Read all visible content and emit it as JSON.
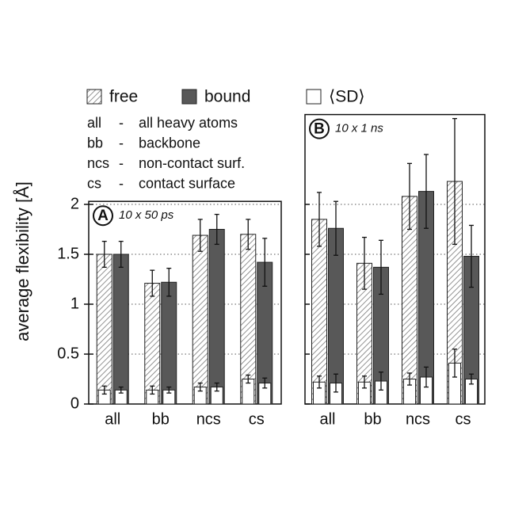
{
  "chart_data": [
    {
      "type": "bar",
      "panel": "A",
      "panel_note": "10 x 50 ps",
      "y_label": "average flexibility  [Å]",
      "categories": [
        "all",
        "bb",
        "ncs",
        "cs"
      ],
      "ylim": [
        0,
        2.03
      ],
      "yticks": [
        0,
        0.5,
        1,
        1.5,
        2
      ],
      "grid": true,
      "series": [
        {
          "name": "free",
          "color": "#ffffff",
          "pattern": "hatch",
          "values": [
            1.5,
            1.21,
            1.69,
            1.7
          ],
          "errors": [
            0.13,
            0.13,
            0.16,
            0.15
          ],
          "sd": {
            "values": [
              0.14,
              0.14,
              0.17,
              0.25
            ],
            "errors": [
              0.04,
              0.04,
              0.04,
              0.04
            ]
          }
        },
        {
          "name": "bound",
          "color": "#585858",
          "values": [
            1.5,
            1.22,
            1.75,
            1.42
          ],
          "errors": [
            0.13,
            0.14,
            0.15,
            0.24
          ],
          "sd": {
            "values": [
              0.14,
              0.14,
              0.17,
              0.21
            ],
            "errors": [
              0.03,
              0.03,
              0.04,
              0.05
            ]
          }
        }
      ],
      "sd_name": "⟨SD⟩",
      "sd_color": "#ffffff"
    },
    {
      "type": "bar",
      "panel": "B",
      "panel_note": "10 x 1 ns",
      "categories": [
        "all",
        "bb",
        "ncs",
        "cs"
      ],
      "ylim": [
        0,
        2.9
      ],
      "yticks": [
        0,
        0.5,
        1,
        1.5,
        2
      ],
      "grid": true,
      "series": [
        {
          "color": "#ffffff",
          "pattern": "hatch",
          "values": [
            1.85,
            1.41,
            2.08,
            2.23
          ],
          "errors": [
            0.27,
            0.26,
            0.33,
            0.63
          ],
          "sd": {
            "values": [
              0.22,
              0.22,
              0.25,
              0.41
            ],
            "errors": [
              0.06,
              0.06,
              0.06,
              0.14
            ]
          }
        },
        {
          "color": "#585858",
          "values": [
            1.76,
            1.37,
            2.13,
            1.48
          ],
          "errors": [
            0.27,
            0.27,
            0.37,
            0.31
          ],
          "sd": {
            "values": [
              0.21,
              0.23,
              0.27,
              0.25
            ],
            "errors": [
              0.09,
              0.09,
              0.1,
              0.05
            ]
          }
        }
      ],
      "sd_color": "#ffffff"
    }
  ],
  "key": {
    "separator": "-",
    "items": [
      {
        "abbr": "all",
        "desc": "all heavy atoms"
      },
      {
        "abbr": "bb",
        "desc": "backbone"
      },
      {
        "abbr": "ncs",
        "desc": "non-contact surf."
      },
      {
        "abbr": "cs",
        "desc": "contact surface"
      }
    ]
  }
}
